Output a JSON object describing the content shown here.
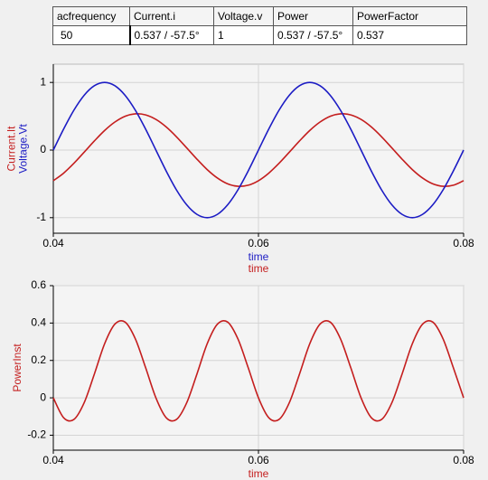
{
  "table": {
    "header": [
      "acfrequency",
      "Current.i",
      "Voltage.v",
      "Power",
      "PowerFactor"
    ],
    "rows": [
      [
        "50",
        "0.537 / -57.5°",
        "1",
        "0.537 / -57.5°",
        "0.537"
      ]
    ]
  },
  "chart_data": [
    {
      "type": "line",
      "x": [
        0.04,
        0.041,
        0.042,
        0.043,
        0.044,
        0.045,
        0.046,
        0.047,
        0.048,
        0.049,
        0.05,
        0.051,
        0.052,
        0.053,
        0.054,
        0.055,
        0.056,
        0.057,
        0.058,
        0.059,
        0.06,
        0.061,
        0.062,
        0.063,
        0.064,
        0.065,
        0.066,
        0.067,
        0.068,
        0.069,
        0.07,
        0.071,
        0.072,
        0.073,
        0.074,
        0.075,
        0.076,
        0.077,
        0.078,
        0.079,
        0.08
      ],
      "series": [
        {
          "name": "Current.It",
          "color": "#c41e1e",
          "values": [
            -0.453,
            -0.342,
            -0.197,
            -0.033,
            0.134,
            0.289,
            0.414,
            0.5,
            0.536,
            0.52,
            0.453,
            0.342,
            0.197,
            0.033,
            -0.134,
            -0.289,
            -0.414,
            -0.5,
            -0.536,
            -0.52,
            -0.453,
            -0.342,
            -0.197,
            -0.033,
            0.134,
            0.289,
            0.414,
            0.5,
            0.536,
            0.52,
            0.453,
            0.342,
            0.197,
            0.033,
            -0.134,
            -0.289,
            -0.414,
            -0.5,
            -0.536,
            -0.52,
            -0.453
          ]
        },
        {
          "name": "Voltage.Vt",
          "color": "#1c1cc4",
          "values": [
            0,
            0.309,
            0.588,
            0.809,
            0.951,
            1,
            0.951,
            0.809,
            0.588,
            0.309,
            0,
            -0.309,
            -0.588,
            -0.809,
            -0.951,
            -1,
            -0.951,
            -0.809,
            -0.588,
            -0.309,
            0,
            0.309,
            0.588,
            0.809,
            0.951,
            1,
            0.951,
            0.809,
            0.588,
            0.309,
            0,
            -0.309,
            -0.588,
            -0.809,
            -0.951,
            -1,
            -0.951,
            -0.809,
            -0.588,
            -0.309,
            0
          ]
        }
      ],
      "xlabels": [
        {
          "text": "time",
          "color": "#1c1cc4"
        },
        {
          "text": "time",
          "color": "#c41e1e"
        }
      ],
      "xlim": [
        0.04,
        0.08
      ],
      "xticks": [
        0.04,
        0.06,
        0.08
      ],
      "ylim": [
        -1.23,
        1.27
      ],
      "yticks": [
        -1,
        0,
        1
      ],
      "grid": true
    },
    {
      "type": "line",
      "x": [
        0.04,
        0.041,
        0.042,
        0.043,
        0.044,
        0.045,
        0.046,
        0.047,
        0.048,
        0.049,
        0.05,
        0.051,
        0.052,
        0.053,
        0.054,
        0.055,
        0.056,
        0.057,
        0.058,
        0.059,
        0.06,
        0.061,
        0.062,
        0.063,
        0.064,
        0.065,
        0.066,
        0.067,
        0.068,
        0.069,
        0.07,
        0.071,
        0.072,
        0.073,
        0.074,
        0.075,
        0.076,
        0.077,
        0.078,
        0.079,
        0.08
      ],
      "series": [
        {
          "name": "PowerInst",
          "color": "#c41e1e",
          "values": [
            0,
            -0.106,
            -0.116,
            -0.027,
            0.127,
            0.289,
            0.394,
            0.405,
            0.315,
            0.161,
            0,
            -0.106,
            -0.116,
            -0.027,
            0.127,
            0.289,
            0.394,
            0.405,
            0.315,
            0.161,
            0,
            -0.106,
            -0.116,
            -0.027,
            0.127,
            0.289,
            0.394,
            0.405,
            0.315,
            0.161,
            0,
            -0.106,
            -0.116,
            -0.027,
            0.127,
            0.289,
            0.394,
            0.405,
            0.315,
            0.161,
            0
          ]
        }
      ],
      "xlabels": [
        {
          "text": "time",
          "color": "#c41e1e"
        }
      ],
      "xlim": [
        0.04,
        0.08
      ],
      "xticks": [
        0.04,
        0.06,
        0.08
      ],
      "ylim": [
        -0.28,
        0.6
      ],
      "yticks": [
        -0.2,
        0,
        0.2,
        0.4,
        0.6
      ],
      "grid": true
    }
  ]
}
